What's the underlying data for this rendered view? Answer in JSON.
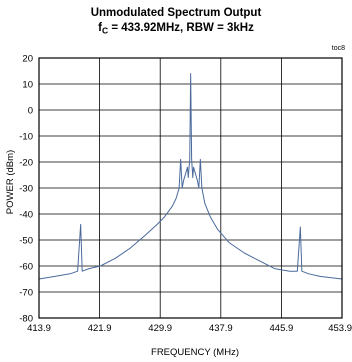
{
  "chart_data": {
    "type": "line",
    "title": "Unmodulated Spectrum Output",
    "subtitle": {
      "prefix": "f",
      "subscript": "C",
      "suffix": " = 433.92MHz, RBW = 3kHz"
    },
    "corner_label": "toc8",
    "xlabel": "FREQUENCY (MHz)",
    "ylabel": "POWER (dBm)",
    "xlim": [
      413.9,
      453.9
    ],
    "ylim": [
      -80,
      20
    ],
    "xticks": [
      "413.9",
      "421.9",
      "429.9",
      "437.9",
      "445.9",
      "453.9"
    ],
    "yticks": [
      "20",
      "10",
      "0",
      "-10",
      "-20",
      "-30",
      "-40",
      "-50",
      "-60",
      "-70",
      "-80"
    ],
    "grid": true,
    "line_color": "#4a6a9c",
    "series": [
      {
        "x": [
          413.9,
          416.0,
          418.0,
          419.0,
          419.4,
          419.6,
          420.5,
          422.0,
          424.0,
          426.0,
          428.0,
          429.5,
          430.5,
          431.5,
          432.0,
          432.4,
          432.6,
          432.8,
          433.0,
          433.3,
          433.5,
          433.6,
          433.8,
          433.92,
          434.05,
          434.2,
          434.3,
          434.5,
          434.8,
          435.0,
          435.2,
          435.4,
          435.8,
          436.5,
          437.5,
          439.0,
          441.0,
          443.0,
          445.0,
          447.0,
          448.0,
          448.4,
          448.6,
          449.5,
          451.0,
          453.9
        ],
        "y": [
          -65,
          -64,
          -63,
          -62,
          -44,
          -62,
          -61,
          -60,
          -57,
          -53,
          -48,
          -44,
          -41,
          -37,
          -34,
          -30,
          -19,
          -30,
          -27,
          -24,
          -22,
          -26,
          -19,
          14,
          -19,
          -26,
          -22,
          -24,
          -27,
          -30,
          -19,
          -30,
          -36,
          -41,
          -46,
          -51,
          -55,
          -58,
          -61,
          -62,
          -62,
          -45,
          -62,
          -63,
          -64,
          -65
        ]
      }
    ]
  }
}
